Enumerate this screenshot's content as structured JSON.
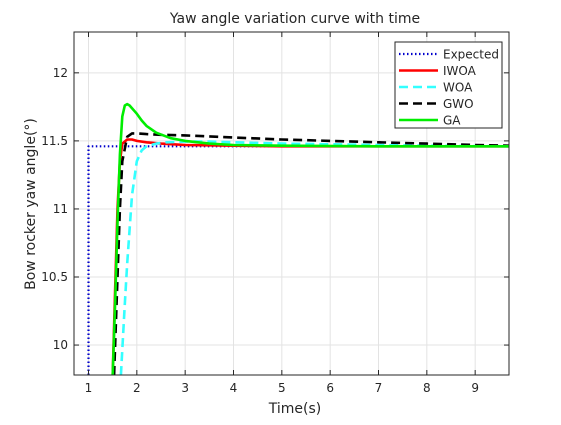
{
  "chart_data": {
    "type": "line",
    "title": "Yaw angle variation curve with time",
    "xlabel": "Time(s)",
    "ylabel": "Bow rocker yaw angle(°)",
    "xlim": [
      0.7,
      9.7
    ],
    "ylim": [
      9.78,
      12.3
    ],
    "xticks": [
      1,
      2,
      3,
      4,
      5,
      6,
      7,
      8,
      9
    ],
    "yticks": [
      10,
      10.5,
      11,
      11.5,
      12
    ],
    "ytick_labels": [
      "10",
      "10.5",
      "11",
      "11.5",
      "12"
    ],
    "grid": true,
    "legend_position": "top-right",
    "series": [
      {
        "name": "Expected",
        "color": "#0000cc",
        "style": "dotted",
        "x": [
          1,
          1,
          1.5,
          2,
          3,
          4,
          5,
          6,
          7,
          8,
          9,
          9.7
        ],
        "y": [
          9.78,
          11.46,
          11.46,
          11.46,
          11.46,
          11.46,
          11.46,
          11.46,
          11.46,
          11.46,
          11.46,
          11.46
        ]
      },
      {
        "name": "IWOA",
        "color": "#ff0000",
        "style": "solid",
        "x": [
          1.5,
          1.55,
          1.6,
          1.65,
          1.7,
          1.8,
          1.9,
          2.0,
          2.2,
          2.5,
          3.0,
          4.0,
          5.0,
          7.0,
          9.7
        ],
        "y": [
          9.78,
          10.4,
          11.0,
          11.35,
          11.48,
          11.51,
          11.51,
          11.5,
          11.49,
          11.48,
          11.47,
          11.465,
          11.46,
          11.46,
          11.46
        ]
      },
      {
        "name": "WOA",
        "color": "#33ffff",
        "style": "dashed",
        "x": [
          1.67,
          1.75,
          1.8,
          1.9,
          2.0,
          2.1,
          2.2,
          2.4,
          2.6,
          3.0,
          3.5,
          4.0,
          5.0,
          6.0,
          7.0,
          8.0,
          9.7
        ],
        "y": [
          9.78,
          10.3,
          10.6,
          11.1,
          11.35,
          11.43,
          11.46,
          11.48,
          11.49,
          11.495,
          11.495,
          11.49,
          11.48,
          11.475,
          11.47,
          11.465,
          11.46
        ]
      },
      {
        "name": "GWO",
        "color": "#000000",
        "style": "dashed",
        "x": [
          1.53,
          1.6,
          1.65,
          1.7,
          1.8,
          1.9,
          2.0,
          2.2,
          2.5,
          3.0,
          4.0,
          5.0,
          6.0,
          7.0,
          8.0,
          9.0,
          9.7
        ],
        "y": [
          9.78,
          10.5,
          11.0,
          11.35,
          11.53,
          11.555,
          11.555,
          11.55,
          11.545,
          11.54,
          11.525,
          11.51,
          11.5,
          11.49,
          11.48,
          11.47,
          11.465
        ]
      },
      {
        "name": "GA",
        "color": "#00ee00",
        "style": "solid",
        "x": [
          1.5,
          1.55,
          1.6,
          1.65,
          1.7,
          1.75,
          1.8,
          1.85,
          1.9,
          2.0,
          2.1,
          2.2,
          2.4,
          2.7,
          3.0,
          3.5,
          4.0,
          5.0,
          7.0,
          9.7
        ],
        "y": [
          9.78,
          10.3,
          10.9,
          11.4,
          11.68,
          11.76,
          11.77,
          11.76,
          11.74,
          11.7,
          11.65,
          11.61,
          11.56,
          11.52,
          11.5,
          11.48,
          11.47,
          11.465,
          11.46,
          11.46
        ]
      }
    ]
  }
}
